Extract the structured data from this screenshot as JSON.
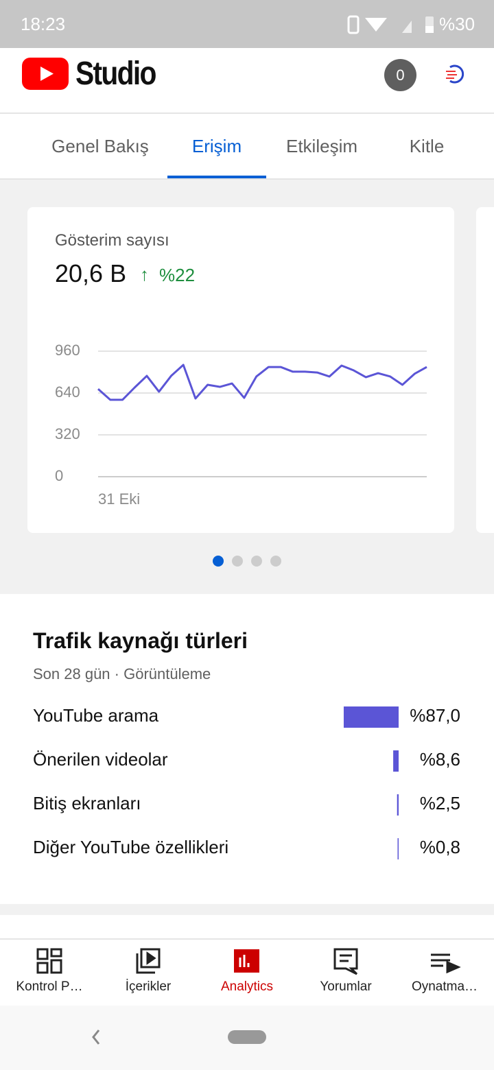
{
  "status_bar": {
    "time": "18:23",
    "battery": "%30"
  },
  "header": {
    "title": "Studio",
    "notifications": "0"
  },
  "tabs": {
    "items": [
      "Genel Bakış",
      "Erişim",
      "Etkileşim",
      "Kitle"
    ],
    "active": 1
  },
  "card": {
    "title": "Gösterim sayısı",
    "value": "20,6 B",
    "change": "%22"
  },
  "chart_data": [
    {
      "type": "line",
      "color": "#5b55d6",
      "categories": [
        "31 Eki",
        null,
        null,
        null,
        null,
        null,
        null,
        null,
        null,
        null,
        null,
        null,
        null,
        null,
        null,
        null,
        null,
        null,
        null,
        null,
        null,
        null,
        null,
        null,
        null,
        null,
        null,
        null
      ],
      "values": [
        671,
        588,
        588,
        682,
        771,
        650,
        771,
        855,
        598,
        703,
        687,
        713,
        603,
        766,
        839,
        839,
        803,
        803,
        797,
        766,
        850,
        813,
        761,
        792,
        766,
        703,
        787,
        839
      ],
      "ylim": [
        0,
        960
      ],
      "yticks": [
        0,
        320,
        640,
        960
      ],
      "grid": true
    },
    {
      "type": "bar",
      "orientation": "horizontal",
      "title": "Trafik kaynağı türleri",
      "subtitle": "Son 28 gün · Görüntüleme",
      "categories": [
        "YouTube arama",
        "Önerilen videolar",
        "Bitiş ekranları",
        "Diğer YouTube özellikleri"
      ],
      "values": [
        87.0,
        8.6,
        2.5,
        0.8
      ],
      "value_labels": [
        "%87,0",
        "%8,6",
        "%2,5",
        "%0,8"
      ],
      "color": "#5b55d6"
    }
  ],
  "bottom_nav": {
    "items": [
      "Kontrol P…",
      "İçerikler",
      "Analytics",
      "Yorumlar",
      "Oynatma…"
    ],
    "active": 2
  }
}
